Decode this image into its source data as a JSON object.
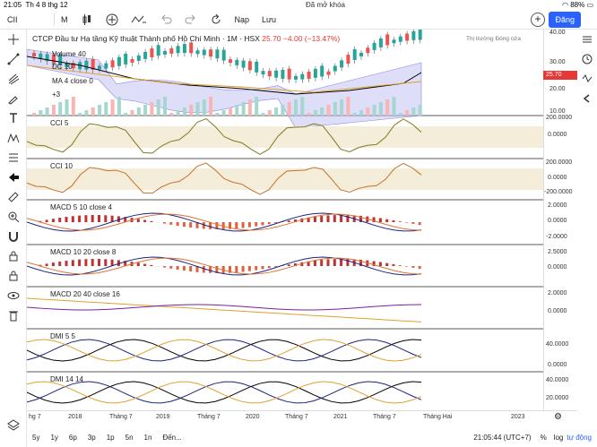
{
  "status": {
    "time": "21:05",
    "date": "Th 4 8 thg 12",
    "lock": "Đã mở khóa",
    "battery": "88%"
  },
  "toolbar": {
    "symbol": "CII",
    "interval": "M",
    "replay": "Nạp",
    "save": "Lưu",
    "publish": "Đăng"
  },
  "chart": {
    "title": "CTCP Đầu tư Hạ tầng Kỹ thuật Thành phố Hồ Chí Minh · 1M · HSX",
    "last": "25.70",
    "change": "−4.00 (−13.47%)",
    "market_status": "Thị trường Đóng cửa",
    "last_label": "25.70"
  },
  "indicators": {
    "volume": "Volume 40",
    "dc": "DC 10",
    "ma": "MA 4 close 0",
    "more": "+3",
    "cci1": "CCI 5",
    "cci2": "CCI 10",
    "macd1": "MACD 5 10 close 4",
    "macd2": "MACD 10 20 close 8",
    "macd3": "MACD 20 40 close 16",
    "dmi1": "DMI 5 5",
    "dmi2": "DMI 14 14"
  },
  "price_scale": {
    "main": [
      "40.00",
      "30.00",
      "20.00",
      "10.00"
    ],
    "cci1": [
      "200.0000",
      "0.0000"
    ],
    "cci2": [
      "200.0000",
      "0.0000",
      "-200.0000"
    ],
    "macd1": [
      "2.0000",
      "0.0000",
      "-2.0000"
    ],
    "macd2": [
      "2.5000",
      "0.0000"
    ],
    "macd3": [
      "2.0000",
      "0.0000"
    ],
    "dmi1": [
      "40.0000",
      "0.0000"
    ],
    "dmi2": [
      "40.0000",
      "20.0000"
    ]
  },
  "time_axis": [
    "hg 7",
    "2018",
    "Tháng 7",
    "2019",
    "Tháng 7",
    "2020",
    "Tháng 7",
    "2021",
    "Tháng 7",
    "Tháng Hai",
    "2023"
  ],
  "bottom": {
    "ranges": [
      "5y",
      "1y",
      "6p",
      "3p",
      "1p",
      "5n",
      "1n",
      "Đến..."
    ],
    "clock": "21:05:44 (UTC+7)",
    "pct": "%",
    "log": "log",
    "auto": "tự động"
  },
  "colors": {
    "up": "#26a69a",
    "down": "#ef5350",
    "accent": "#2962ff",
    "cci": "#7d7b1e",
    "cci2": "#c8702a"
  }
}
